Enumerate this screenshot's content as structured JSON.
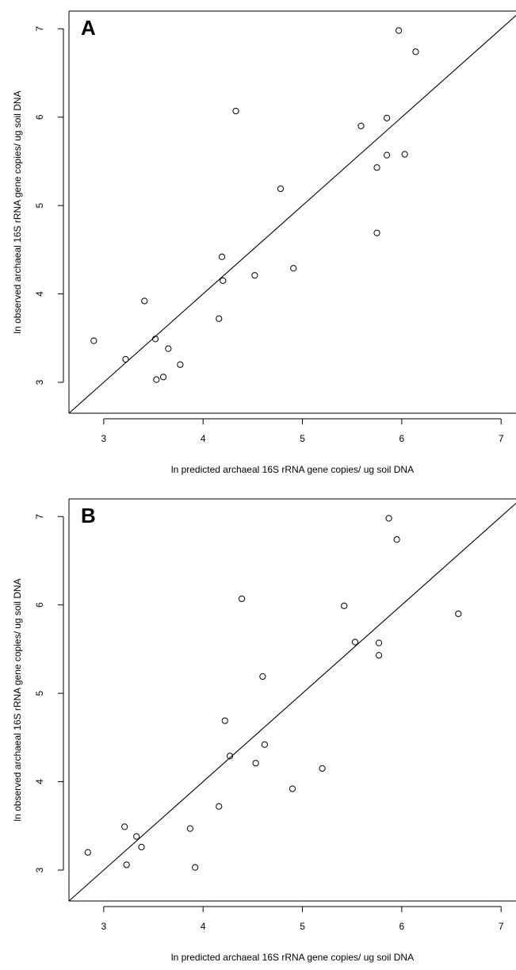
{
  "chart_data": [
    {
      "type": "scatter",
      "panel_label": "A",
      "xlabel": "ln predicted archaeal 16S rRNA gene copies/ ug soil DNA",
      "ylabel": "ln observed archaeal 16S rRNA gene copies/ ug soil DNA",
      "xlim": [
        2.65,
        7.15
      ],
      "ylim": [
        2.65,
        7.2
      ],
      "xticks": [
        3,
        4,
        5,
        6,
        7
      ],
      "yticks": [
        3,
        4,
        5,
        6,
        7
      ],
      "reference_line": "y = x",
      "grid": false,
      "points": [
        {
          "x": 2.9,
          "y": 3.47
        },
        {
          "x": 3.22,
          "y": 3.26
        },
        {
          "x": 3.41,
          "y": 3.92
        },
        {
          "x": 3.52,
          "y": 3.49
        },
        {
          "x": 3.53,
          "y": 3.03
        },
        {
          "x": 3.6,
          "y": 3.06
        },
        {
          "x": 3.65,
          "y": 3.38
        },
        {
          "x": 3.77,
          "y": 3.2
        },
        {
          "x": 4.16,
          "y": 3.72
        },
        {
          "x": 4.19,
          "y": 4.42
        },
        {
          "x": 4.2,
          "y": 4.15
        },
        {
          "x": 4.33,
          "y": 6.07
        },
        {
          "x": 4.52,
          "y": 4.21
        },
        {
          "x": 4.78,
          "y": 5.19
        },
        {
          "x": 4.91,
          "y": 4.29
        },
        {
          "x": 5.59,
          "y": 5.9
        },
        {
          "x": 5.75,
          "y": 5.43
        },
        {
          "x": 5.75,
          "y": 4.69
        },
        {
          "x": 5.85,
          "y": 5.99
        },
        {
          "x": 5.85,
          "y": 5.57
        },
        {
          "x": 5.97,
          "y": 6.98
        },
        {
          "x": 6.03,
          "y": 5.58
        },
        {
          "x": 6.14,
          "y": 6.74
        }
      ]
    },
    {
      "type": "scatter",
      "panel_label": "B",
      "xlabel": "ln predicted archaeal 16S rRNA gene copies/ ug soil DNA",
      "ylabel": "ln observed archaeal 16S rRNA gene copies/ ug soil DNA",
      "xlim": [
        2.65,
        7.15
      ],
      "ylim": [
        2.65,
        7.2
      ],
      "xticks": [
        3,
        4,
        5,
        6,
        7
      ],
      "yticks": [
        3,
        4,
        5,
        6,
        7
      ],
      "reference_line": "y = x",
      "grid": false,
      "points": [
        {
          "x": 2.84,
          "y": 3.2
        },
        {
          "x": 3.21,
          "y": 3.49
        },
        {
          "x": 3.23,
          "y": 3.06
        },
        {
          "x": 3.33,
          "y": 3.38
        },
        {
          "x": 3.38,
          "y": 3.26
        },
        {
          "x": 3.87,
          "y": 3.47
        },
        {
          "x": 3.92,
          "y": 3.03
        },
        {
          "x": 4.16,
          "y": 3.72
        },
        {
          "x": 4.22,
          "y": 4.69
        },
        {
          "x": 4.27,
          "y": 4.29
        },
        {
          "x": 4.39,
          "y": 6.07
        },
        {
          "x": 4.53,
          "y": 4.21
        },
        {
          "x": 4.6,
          "y": 5.19
        },
        {
          "x": 4.62,
          "y": 4.42
        },
        {
          "x": 4.9,
          "y": 3.92
        },
        {
          "x": 5.2,
          "y": 4.15
        },
        {
          "x": 5.42,
          "y": 5.99
        },
        {
          "x": 5.53,
          "y": 5.58
        },
        {
          "x": 5.77,
          "y": 5.57
        },
        {
          "x": 5.77,
          "y": 5.43
        },
        {
          "x": 5.87,
          "y": 6.98
        },
        {
          "x": 5.95,
          "y": 6.74
        },
        {
          "x": 6.57,
          "y": 5.9
        }
      ]
    }
  ]
}
